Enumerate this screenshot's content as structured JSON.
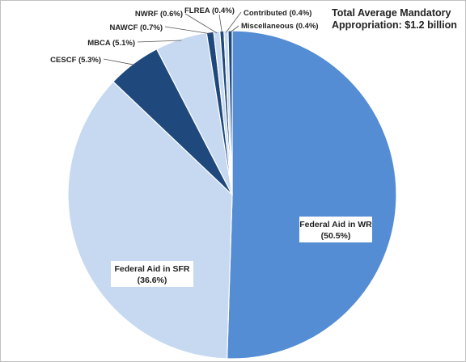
{
  "chart_data": {
    "type": "pie",
    "title": "Total Average Mandatory Appropriation: $1.2 billion",
    "start_angle_deg": 0,
    "direction": "clockwise",
    "slices": [
      {
        "label": "Federal Aid in WR",
        "display_value": "(50.5%)",
        "value": 50.5,
        "color": "#548dd4",
        "label_style": "box"
      },
      {
        "label": "Federal Aid in SFR",
        "display_value": "(36.6%)",
        "value": 36.6,
        "color": "#c6d9f1",
        "label_style": "box"
      },
      {
        "label": "CESCF",
        "display_value": "(5.3%)",
        "value": 5.3,
        "color": "#1f497d",
        "label_style": "leader"
      },
      {
        "label": "MBCA",
        "display_value": "(5.1%)",
        "value": 5.1,
        "color": "#c6d9f1",
        "label_style": "leader"
      },
      {
        "label": "NAWCF",
        "display_value": "(0.7%)",
        "value": 0.7,
        "color": "#1f497d",
        "label_style": "leader"
      },
      {
        "label": "NWRF",
        "display_value": "(0.6%)",
        "value": 0.6,
        "color": "#c6d9f1",
        "label_style": "leader"
      },
      {
        "label": "FLREA",
        "display_value": "(0.4%)",
        "value": 0.4,
        "color": "#1f497d",
        "label_style": "leader"
      },
      {
        "label": "Contributed",
        "display_value": "(0.4%)",
        "value": 0.4,
        "color": "#c6d9f1",
        "label_style": "leader"
      },
      {
        "label": "Miscellaneous",
        "display_value": "(0.4%)",
        "value": 0.4,
        "color": "#1f497d",
        "label_style": "leader"
      }
    ]
  }
}
